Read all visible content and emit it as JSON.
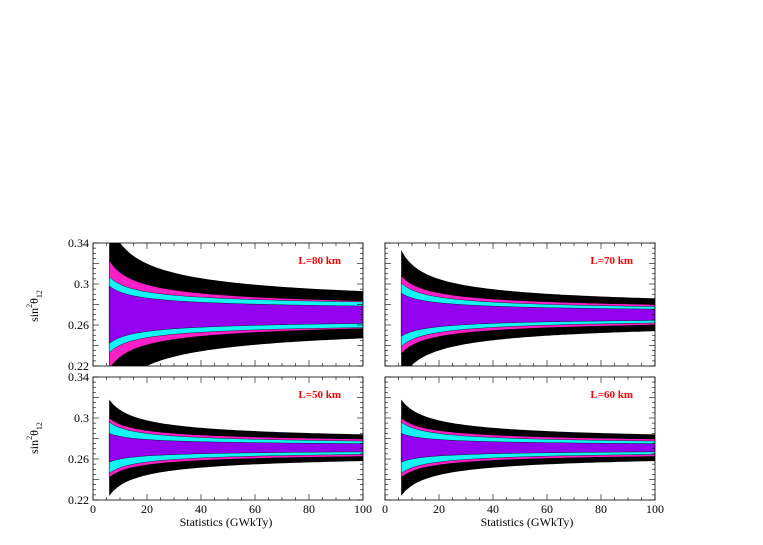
{
  "colors": {
    "band_3sigma": "#000000",
    "band_2sigma": "#ff1fc8",
    "band_1sigma": "#13f4f4",
    "band_center": "#9400f0",
    "label_color": "#ff0000"
  },
  "axes": {
    "xlabel": "Statistics (GWkTy)",
    "ylabel_main": "sin",
    "ylabel_sup": "2",
    "ylabel_theta": "θ",
    "ylabel_sub": "12"
  },
  "chart_data": [
    {
      "type": "area",
      "label": "L=80 km",
      "xlim": [
        0,
        100
      ],
      "ylim": [
        0.22,
        0.34
      ],
      "xticks": [],
      "yticks": [
        "0.22",
        "0.26",
        "0.3",
        "0.34"
      ],
      "x_start": 6,
      "x_end": 100,
      "center": 0.27,
      "band_halfwidths_at_x_start": {
        "purple": 0.028,
        "cyan": 0.037,
        "magenta": 0.053,
        "black": 0.09
      },
      "band_halfwidths_at_x_end": {
        "purple": 0.0085,
        "cyan": 0.0125,
        "magenta": 0.0135,
        "black": 0.023
      }
    },
    {
      "type": "area",
      "label": "L=70 km",
      "xlim": [
        0,
        100
      ],
      "ylim": [
        0.22,
        0.34
      ],
      "xticks": [],
      "yticks": [],
      "x_start": 6,
      "x_end": 100,
      "center": 0.27,
      "band_halfwidths_at_x_start": {
        "purple": 0.021,
        "cyan": 0.031,
        "magenta": 0.038,
        "black": 0.063
      },
      "band_halfwidths_at_x_end": {
        "purple": 0.0055,
        "cyan": 0.008,
        "magenta": 0.01,
        "black": 0.016
      }
    },
    {
      "type": "area",
      "label": "L=50 km",
      "xlim": [
        0,
        100
      ],
      "ylim": [
        0.22,
        0.34
      ],
      "xticks": [
        "0",
        "20",
        "40",
        "60",
        "80",
        "100"
      ],
      "yticks": [
        "0.22",
        "0.26",
        "0.3",
        "0.34"
      ],
      "x_start": 6,
      "x_end": 100,
      "center": 0.271,
      "band_halfwidths_at_x_start": {
        "purple": 0.014,
        "cyan": 0.025,
        "magenta": 0.029,
        "black": 0.047
      },
      "band_halfwidths_at_x_end": {
        "purple": 0.004,
        "cyan": 0.0065,
        "magenta": 0.0085,
        "black": 0.013
      }
    },
    {
      "type": "area",
      "label": "L=60 km",
      "xlim": [
        0,
        100
      ],
      "ylim": [
        0.22,
        0.34
      ],
      "xticks": [
        "0",
        "20",
        "40",
        "60",
        "80",
        "100"
      ],
      "yticks": [],
      "x_start": 6,
      "x_end": 100,
      "center": 0.271,
      "band_halfwidths_at_x_start": {
        "purple": 0.014,
        "cyan": 0.025,
        "magenta": 0.029,
        "black": 0.047
      },
      "band_halfwidths_at_x_end": {
        "purple": 0.004,
        "cyan": 0.0065,
        "magenta": 0.0085,
        "black": 0.013
      }
    }
  ]
}
